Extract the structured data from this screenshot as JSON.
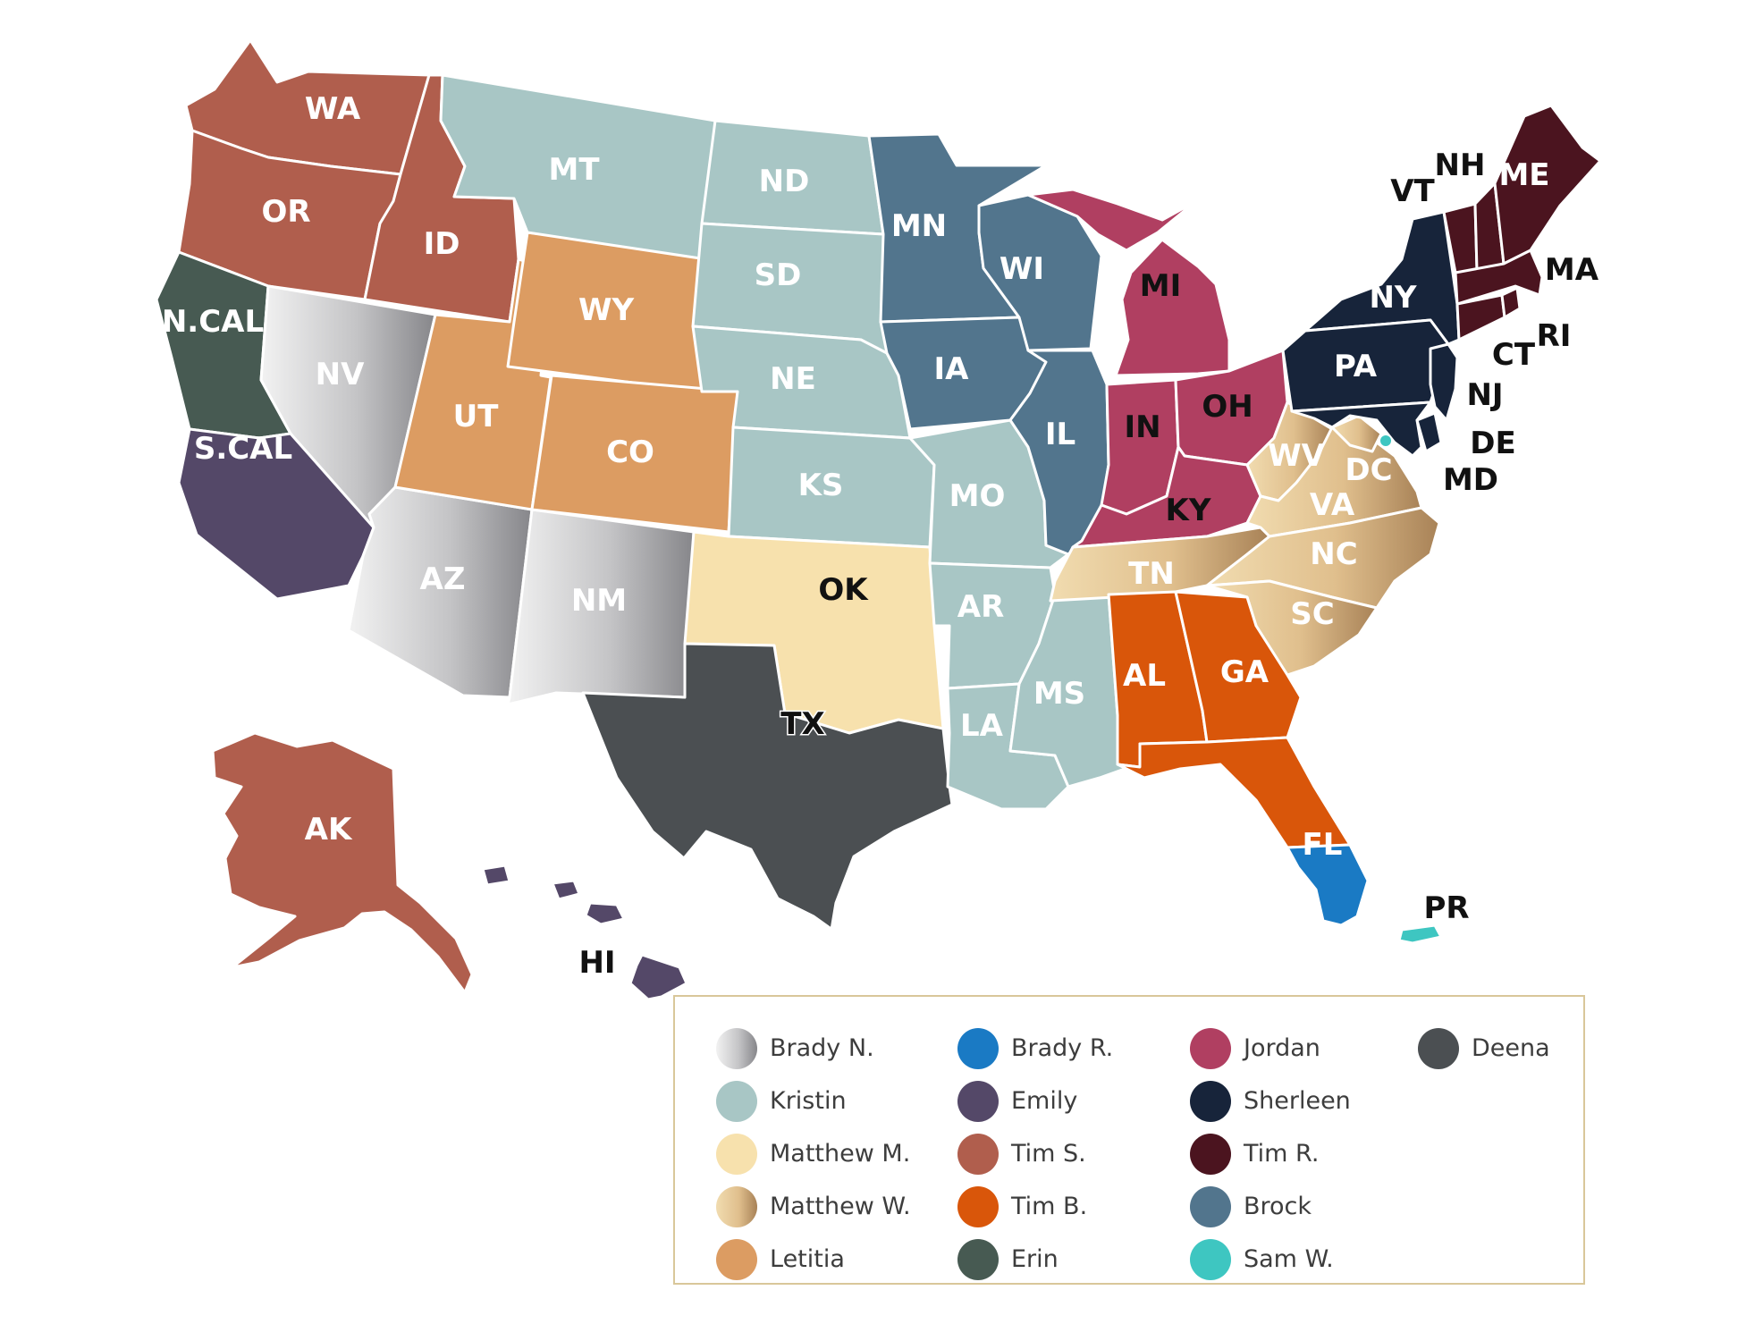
{
  "colors": {
    "brady_n": "grad-brady-n",
    "kristin": "#a8c6c5",
    "matthew_m": "#f7e1ad",
    "matthew_w": "grad-matthew-w",
    "letitia": "#dc9c62",
    "brady_r": "#1a7ac4",
    "emily": "#544868",
    "tim_s": "#b05e4d",
    "tim_b": "#d9560a",
    "erin": "#475a52",
    "jordan": "#b03f61",
    "sherleen": "#17243a",
    "tim_r": "#4b141f",
    "brock": "#52758d",
    "sam_w": "#3ec6c1",
    "deena": "#4b4f52"
  },
  "states": [
    {
      "abbr": "WA",
      "owner": "tim_s"
    },
    {
      "abbr": "OR",
      "owner": "tim_s"
    },
    {
      "abbr": "ID",
      "owner": "tim_s"
    },
    {
      "abbr": "AK",
      "owner": "tim_s"
    },
    {
      "abbr": "N.CAL",
      "owner": "erin"
    },
    {
      "abbr": "S.CAL",
      "owner": "emily"
    },
    {
      "abbr": "HI",
      "owner": "emily"
    },
    {
      "abbr": "NV",
      "owner": "brady_n"
    },
    {
      "abbr": "AZ",
      "owner": "brady_n"
    },
    {
      "abbr": "NM",
      "owner": "brady_n"
    },
    {
      "abbr": "UT",
      "owner": "letitia"
    },
    {
      "abbr": "WY",
      "owner": "letitia"
    },
    {
      "abbr": "CO",
      "owner": "letitia"
    },
    {
      "abbr": "MT",
      "owner": "kristin"
    },
    {
      "abbr": "ND",
      "owner": "kristin"
    },
    {
      "abbr": "SD",
      "owner": "kristin"
    },
    {
      "abbr": "NE",
      "owner": "kristin"
    },
    {
      "abbr": "KS",
      "owner": "kristin"
    },
    {
      "abbr": "MO",
      "owner": "kristin"
    },
    {
      "abbr": "AR",
      "owner": "kristin"
    },
    {
      "abbr": "LA",
      "owner": "kristin"
    },
    {
      "abbr": "MS",
      "owner": "kristin"
    },
    {
      "abbr": "OK",
      "owner": "matthew_m"
    },
    {
      "abbr": "TX",
      "owner": "deena"
    },
    {
      "abbr": "MN",
      "owner": "brock"
    },
    {
      "abbr": "IA",
      "owner": "brock"
    },
    {
      "abbr": "WI",
      "owner": "brock"
    },
    {
      "abbr": "IL",
      "owner": "brock"
    },
    {
      "abbr": "MI",
      "owner": "jordan"
    },
    {
      "abbr": "IN",
      "owner": "jordan"
    },
    {
      "abbr": "OH",
      "owner": "jordan"
    },
    {
      "abbr": "KY",
      "owner": "jordan"
    },
    {
      "abbr": "TN",
      "owner": "matthew_w"
    },
    {
      "abbr": "WV",
      "owner": "matthew_w"
    },
    {
      "abbr": "VA",
      "owner": "matthew_w"
    },
    {
      "abbr": "DC",
      "owner": "matthew_w"
    },
    {
      "abbr": "NC",
      "owner": "matthew_w"
    },
    {
      "abbr": "SC",
      "owner": "matthew_w"
    },
    {
      "abbr": "AL",
      "owner": "tim_b"
    },
    {
      "abbr": "GA",
      "owner": "tim_b"
    },
    {
      "abbr": "FL",
      "owner": "tim_b"
    },
    {
      "abbr": "S.FL",
      "owner": "brady_r"
    },
    {
      "abbr": "NY",
      "owner": "sherleen"
    },
    {
      "abbr": "PA",
      "owner": "sherleen"
    },
    {
      "abbr": "NJ",
      "owner": "sherleen"
    },
    {
      "abbr": "DE",
      "owner": "sherleen"
    },
    {
      "abbr": "MD",
      "owner": "sherleen"
    },
    {
      "abbr": "VT",
      "owner": "tim_r"
    },
    {
      "abbr": "NH",
      "owner": "tim_r"
    },
    {
      "abbr": "ME",
      "owner": "tim_r"
    },
    {
      "abbr": "MA",
      "owner": "tim_r"
    },
    {
      "abbr": "CT",
      "owner": "tim_r"
    },
    {
      "abbr": "RI",
      "owner": "tim_r"
    },
    {
      "abbr": "PR",
      "owner": "sam_w"
    }
  ],
  "labels": {
    "WA": "WA",
    "OR": "OR",
    "ID": "ID",
    "AK": "AK",
    "NCAL": "N.CAL",
    "SCAL": "S.CAL",
    "HI": "HI",
    "NV": "NV",
    "AZ": "AZ",
    "NM": "NM",
    "UT": "UT",
    "WY": "WY",
    "CO": "CO",
    "MT": "MT",
    "ND": "ND",
    "SD": "SD",
    "NE": "NE",
    "KS": "KS",
    "MO": "MO",
    "AR": "AR",
    "LA": "LA",
    "MS": "MS",
    "OK": "OK",
    "TX": "TX",
    "MN": "MN",
    "IA": "IA",
    "WI": "WI",
    "IL": "IL",
    "MI": "MI",
    "IN": "IN",
    "OH": "OH",
    "KY": "KY",
    "TN": "TN",
    "WV": "WV",
    "VA": "VA",
    "DC": "DC",
    "NC": "NC",
    "SC": "SC",
    "AL": "AL",
    "GA": "GA",
    "FL": "FL",
    "NY": "NY",
    "PA": "PA",
    "NJ": "NJ",
    "DE": "DE",
    "MD": "MD",
    "VT": "VT",
    "NH": "NH",
    "ME": "ME",
    "MA": "MA",
    "CT": "CT",
    "RI": "RI",
    "PR": "PR"
  },
  "legend": [
    {
      "name": "Brady N.",
      "color_key": "brady_n"
    },
    {
      "name": "Brady R.",
      "color_key": "brady_r"
    },
    {
      "name": "Jordan",
      "color_key": "jordan"
    },
    {
      "name": "Deena",
      "color_key": "deena"
    },
    {
      "name": "Kristin",
      "color_key": "kristin"
    },
    {
      "name": "Emily",
      "color_key": "emily"
    },
    {
      "name": "Sherleen",
      "color_key": "sherleen"
    },
    {
      "name": "",
      "color_key": ""
    },
    {
      "name": "Matthew M.",
      "color_key": "matthew_m"
    },
    {
      "name": "Tim S.",
      "color_key": "tim_s"
    },
    {
      "name": "Tim R.",
      "color_key": "tim_r"
    },
    {
      "name": "",
      "color_key": ""
    },
    {
      "name": "Matthew W.",
      "color_key": "matthew_w"
    },
    {
      "name": "Tim B.",
      "color_key": "tim_b"
    },
    {
      "name": "Brock",
      "color_key": "brock"
    },
    {
      "name": "",
      "color_key": ""
    },
    {
      "name": "Letitia",
      "color_key": "letitia"
    },
    {
      "name": "Erin",
      "color_key": "erin"
    },
    {
      "name": "Sam W.",
      "color_key": "sam_w"
    },
    {
      "name": "",
      "color_key": ""
    }
  ]
}
